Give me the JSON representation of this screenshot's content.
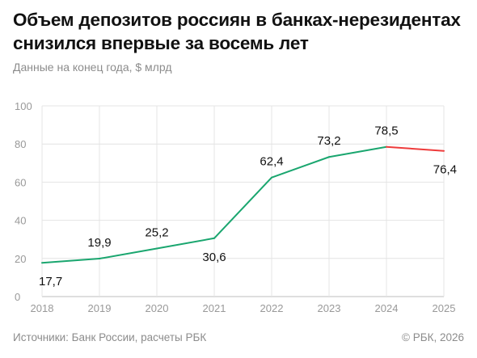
{
  "header": {
    "title": "Объем депозитов россиян в банках-нерезидентах снизился впервые за восемь лет",
    "subtitle": "Данные на конец года, $ млрд"
  },
  "footer": {
    "source": "Источники: Банк России, расчеты РБК",
    "copyright": "© РБК, 2026"
  },
  "chart_data": {
    "type": "line",
    "x": [
      "2018",
      "2019",
      "2020",
      "2021",
      "2022",
      "2023",
      "2024",
      "2025"
    ],
    "series": [
      {
        "values": [
          17.7,
          19.9,
          25.2,
          30.6,
          62.4,
          73.2,
          78.5,
          76.4
        ]
      }
    ],
    "data_labels": [
      "17,7",
      "19,9",
      "25,2",
      "30,6",
      "62,4",
      "73,2",
      "78,5",
      "76,4"
    ],
    "ylim": [
      0,
      100
    ],
    "yticks": [
      0,
      20,
      40,
      60,
      80,
      100
    ],
    "grid": true,
    "colors": {
      "rising": "#1aa66f",
      "falling": "#ee3b3b",
      "grid": "#e4e4e4",
      "tick": "#999999"
    }
  }
}
